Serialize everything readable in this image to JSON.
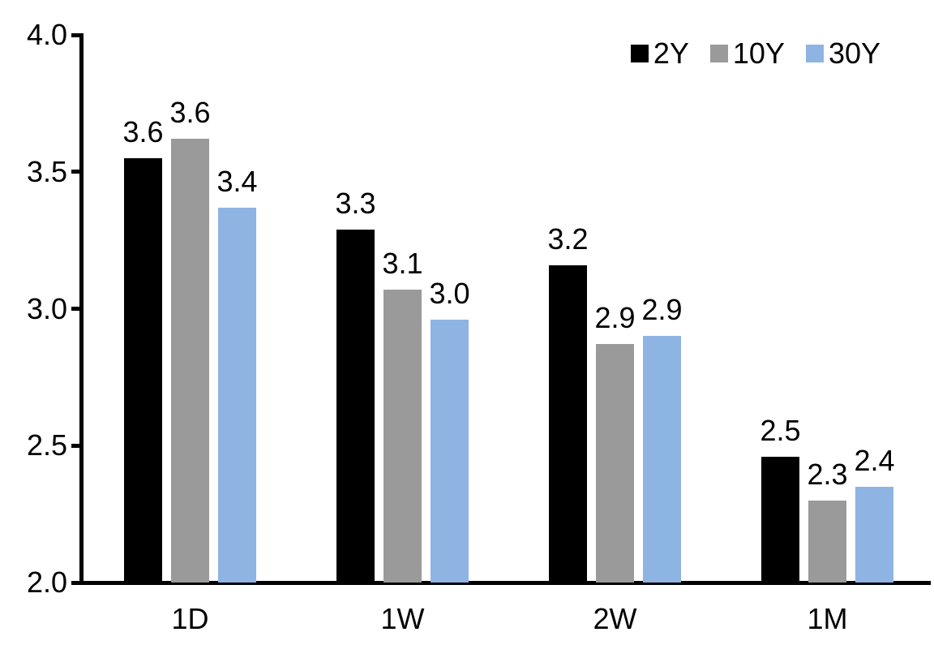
{
  "chart_data": {
    "type": "bar",
    "title": "",
    "xlabel": "",
    "ylabel": "",
    "categories": [
      "1D",
      "1W",
      "2W",
      "1M"
    ],
    "series": [
      {
        "name": "2Y",
        "color": "#000000",
        "values": [
          3.55,
          3.29,
          3.16,
          2.46
        ],
        "labels": [
          "3.6",
          "3.3",
          "3.2",
          "2.5"
        ]
      },
      {
        "name": "10Y",
        "color": "#9A9A9A",
        "values": [
          3.62,
          3.07,
          2.87,
          2.3
        ],
        "labels": [
          "3.6",
          "3.1",
          "2.9",
          "2.3"
        ]
      },
      {
        "name": "30Y",
        "color": "#8EB4E3",
        "values": [
          3.37,
          2.96,
          2.9,
          2.35
        ],
        "labels": [
          "3.4",
          "3.0",
          "2.9",
          "2.4"
        ]
      }
    ],
    "ylim": [
      2.0,
      4.0
    ],
    "yticks": [
      {
        "value": 4.0,
        "label": "4.0"
      },
      {
        "value": 3.5,
        "label": "3.5"
      },
      {
        "value": 3.0,
        "label": "3.0"
      },
      {
        "value": 2.5,
        "label": "2.5"
      },
      {
        "value": 2.0,
        "label": "2.0"
      }
    ],
    "grid": false,
    "legend_position": "top-right",
    "colors": {
      "axis": "#000000",
      "text": "#000000",
      "background": "#ffffff"
    }
  }
}
